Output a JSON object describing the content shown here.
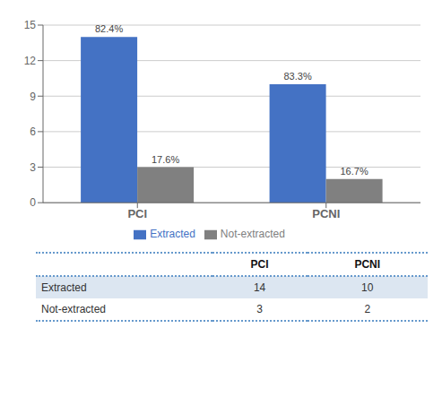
{
  "chart_data": {
    "type": "bar",
    "categories": [
      "PCI",
      "PCNI"
    ],
    "series": [
      {
        "name": "Extracted",
        "color": "#4472C4",
        "values": [
          14,
          10
        ],
        "percent_labels": [
          "82.4%",
          "83.3%"
        ]
      },
      {
        "name": "Not-extracted",
        "color": "#808080",
        "values": [
          3,
          2
        ],
        "percent_labels": [
          "17.6%",
          "16.7%"
        ]
      }
    ],
    "ylim": [
      0,
      15
    ],
    "yticks": [
      0,
      3,
      6,
      9,
      12,
      15
    ],
    "grid": true,
    "legend": "bottom"
  }
}
